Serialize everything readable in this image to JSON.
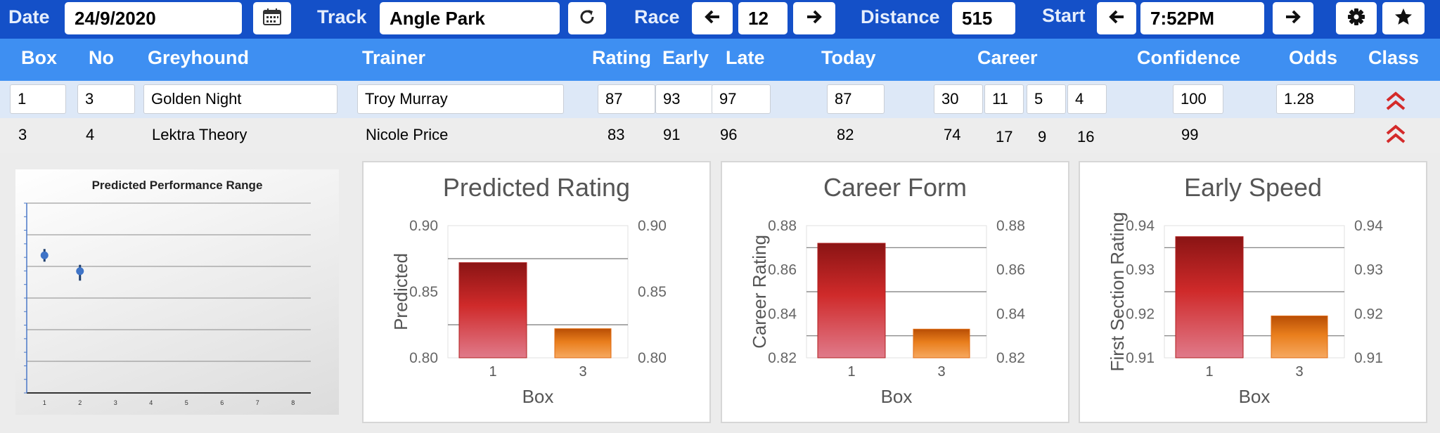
{
  "toolbar": {
    "date_label": "Date",
    "date_value": "24/9/2020",
    "track_label": "Track",
    "track_value": "Angle Park",
    "race_label": "Race",
    "race_value": "12",
    "distance_label": "Distance",
    "distance_value": "515",
    "start_label": "Start",
    "start_value": "7:52PM",
    "icons": [
      "calendar-icon",
      "refresh-icon",
      "arrow-left-icon",
      "arrow-right-icon",
      "gear-icon",
      "star-icon"
    ]
  },
  "table": {
    "headers": {
      "box": "Box",
      "no": "No",
      "greyhound": "Greyhound",
      "trainer": "Trainer",
      "rating": "Rating",
      "early": "Early",
      "late": "Late",
      "today": "Today",
      "career": "Career",
      "confidence": "Confidence",
      "odds": "Odds",
      "class": "Class"
    },
    "rows": [
      {
        "box": "1",
        "no": "3",
        "greyhound": "Golden Night",
        "trainer": "Troy Murray",
        "rating": "87",
        "early": "93",
        "late": "97",
        "today": "87",
        "career": [
          "30",
          "11",
          "5",
          "4"
        ],
        "confidence": "100",
        "odds": "1.28",
        "class_icon": "double-chevron-up-icon"
      },
      {
        "box": "3",
        "no": "4",
        "greyhound": "Lektra Theory",
        "trainer": "Nicole Price",
        "rating": "83",
        "early": "91",
        "late": "96",
        "today": "82",
        "career": [
          "74",
          "17",
          "9",
          "16"
        ],
        "confidence": "99",
        "odds": "",
        "class_icon": "double-chevron-up-icon"
      }
    ]
  },
  "colors": {
    "topbar": "#1450c8",
    "header": "#3e8ff2",
    "row_selected": "#dde8f7",
    "chevron": "#d42a2a"
  },
  "chart_data": [
    {
      "type": "scatter",
      "title": "Predicted Performance Range",
      "x_ticks": [
        "1",
        "2",
        "3",
        "4",
        "5",
        "6",
        "7",
        "8"
      ],
      "points": [
        {
          "x": 1,
          "y": 0.87,
          "low": 0.83,
          "high": 0.91
        },
        {
          "x": 2,
          "y": 0.77,
          "low": 0.71,
          "high": 0.81
        }
      ],
      "ylim": [
        0,
        1.2
      ],
      "grid": true
    },
    {
      "type": "bar",
      "title": "Predicted Rating",
      "xlabel": "Box",
      "ylabel": "Predicted",
      "categories": [
        "1",
        "3"
      ],
      "values": [
        0.872,
        0.822
      ],
      "ylim": [
        0.8,
        0.9
      ],
      "yticks": [
        "0.80",
        "0.85",
        "0.90"
      ],
      "gridlines": [
        0.825,
        0.875
      ],
      "bar_colors": [
        "#b02020",
        "#e06a10"
      ]
    },
    {
      "type": "bar",
      "title": "Career Form",
      "xlabel": "Box",
      "ylabel": "Career Rating",
      "categories": [
        "1",
        "3"
      ],
      "values": [
        0.872,
        0.833
      ],
      "ylim": [
        0.82,
        0.88
      ],
      "yticks": [
        "0.82",
        "0.84",
        "0.86",
        "0.88"
      ],
      "gridlines": [
        0.83,
        0.85,
        0.87
      ],
      "bar_colors": [
        "#b02020",
        "#e06a10"
      ]
    },
    {
      "type": "bar",
      "title": "Early Speed",
      "xlabel": "Box",
      "ylabel": "First Section Rating",
      "categories": [
        "1",
        "3"
      ],
      "values": [
        0.9375,
        0.9195
      ],
      "ylim": [
        0.91,
        0.94
      ],
      "yticks": [
        "0.91",
        "0.92",
        "0.93",
        "0.94"
      ],
      "gridlines": [
        0.915,
        0.925,
        0.935
      ],
      "bar_colors": [
        "#b02020",
        "#e06a10"
      ]
    }
  ]
}
